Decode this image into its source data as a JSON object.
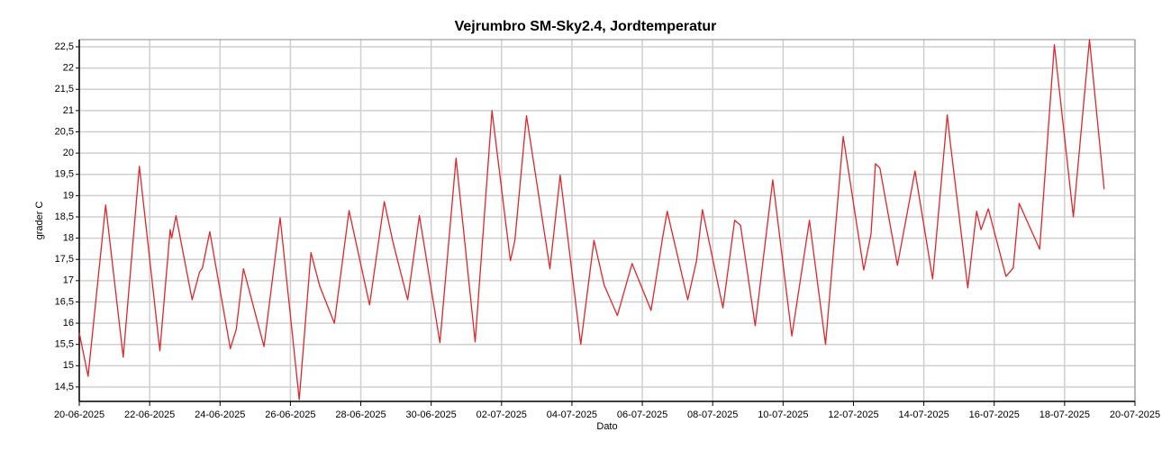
{
  "chart_data": {
    "type": "line",
    "title": "Vejrumbro SM-Sky2.4, Jordtemperatur",
    "xlabel": "Dato",
    "ylabel": "grader C",
    "grid": true,
    "xlim": [
      "2025-06-20",
      "2025-07-20"
    ],
    "xticks": [
      {
        "value": "2025-06-20",
        "label": "20-06-2025"
      },
      {
        "value": "2025-06-22",
        "label": "22-06-2025"
      },
      {
        "value": "2025-06-24",
        "label": "24-06-2025"
      },
      {
        "value": "2025-06-26",
        "label": "26-06-2025"
      },
      {
        "value": "2025-06-28",
        "label": "28-06-2025"
      },
      {
        "value": "2025-06-30",
        "label": "30-06-2025"
      },
      {
        "value": "2025-07-02",
        "label": "02-07-2025"
      },
      {
        "value": "2025-07-04",
        "label": "04-07-2025"
      },
      {
        "value": "2025-07-06",
        "label": "06-07-2025"
      },
      {
        "value": "2025-07-08",
        "label": "08-07-2025"
      },
      {
        "value": "2025-07-10",
        "label": "10-07-2025"
      },
      {
        "value": "2025-07-12",
        "label": "12-07-2025"
      },
      {
        "value": "2025-07-14",
        "label": "14-07-2025"
      },
      {
        "value": "2025-07-16",
        "label": "16-07-2025"
      },
      {
        "value": "2025-07-18",
        "label": "18-07-2025"
      },
      {
        "value": "2025-07-20",
        "label": "20-07-2025"
      }
    ],
    "ylim": [
      14.16,
      22.67
    ],
    "yticks": [
      {
        "value": 14.5,
        "label": "14,5"
      },
      15,
      {
        "value": 15.5,
        "label": "15,5"
      },
      16,
      {
        "value": 16.5,
        "label": "16,5"
      },
      17,
      {
        "value": 17.5,
        "label": "17,5"
      },
      18,
      {
        "value": 18.5,
        "label": "18,5"
      },
      19,
      {
        "value": 19.5,
        "label": "19,5"
      },
      20,
      {
        "value": 20.5,
        "label": "20,5"
      },
      21,
      {
        "value": 21.5,
        "label": "21,5"
      },
      22,
      {
        "value": 22.5,
        "label": "22,5"
      }
    ],
    "x": [
      "2025-06-20T00:00",
      "2025-06-20T06:00",
      "2025-06-20T18:00",
      "2025-06-21T06:00",
      "2025-06-21T17:00",
      "2025-06-22T07:00",
      "2025-06-22T14:00",
      "2025-06-22T15:00",
      "2025-06-22T18:00",
      "2025-06-23T05:00",
      "2025-06-23T10:00",
      "2025-06-23T12:00",
      "2025-06-23T17:00",
      "2025-06-24T07:00",
      "2025-06-24T11:00",
      "2025-06-24T16:00",
      "2025-06-25T06:00",
      "2025-06-25T17:00",
      "2025-06-26T06:00",
      "2025-06-26T14:00",
      "2025-06-26T20:00",
      "2025-06-27T06:00",
      "2025-06-27T16:00",
      "2025-06-28T06:00",
      "2025-06-28T16:00",
      "2025-06-28T22:00",
      "2025-06-29T08:00",
      "2025-06-29T16:00",
      "2025-06-30T06:00",
      "2025-06-30T17:00",
      "2025-07-01T06:00",
      "2025-07-01T17:30",
      "2025-07-02T06:00",
      "2025-07-02T09:00",
      "2025-07-02T17:00",
      "2025-07-03T09:00",
      "2025-07-03T16:00",
      "2025-07-04T06:00",
      "2025-07-04T15:00",
      "2025-07-04T22:00",
      "2025-07-05T07:00",
      "2025-07-05T17:00",
      "2025-07-06T06:00",
      "2025-07-06T14:00",
      "2025-07-06T17:00",
      "2025-07-07T07:00",
      "2025-07-07T13:00",
      "2025-07-07T17:00",
      "2025-07-08T07:00",
      "2025-07-08T15:00",
      "2025-07-08T19:00",
      "2025-07-09T05:00",
      "2025-07-09T17:00",
      "2025-07-10T06:00",
      "2025-07-10T18:00",
      "2025-07-11T05:00",
      "2025-07-11T17:00",
      "2025-07-12T07:00",
      "2025-07-12T12:00",
      "2025-07-12T15:00",
      "2025-07-12T18:00",
      "2025-07-13T06:00",
      "2025-07-13T18:00",
      "2025-07-14T06:00",
      "2025-07-14T16:00",
      "2025-07-14T18:00",
      "2025-07-15T06:00",
      "2025-07-15T12:00",
      "2025-07-15T15:00",
      "2025-07-15T20:00",
      "2025-07-16T08:00",
      "2025-07-16T13:00",
      "2025-07-16T17:00",
      "2025-07-17T07:00",
      "2025-07-17T17:00",
      "2025-07-18T06:00",
      "2025-07-18T17:00",
      "2025-07-19T03:00"
    ],
    "series": [
      {
        "name": "Jordtemperatur",
        "color": "#e0262b",
        "values": [
          15.77,
          14.75,
          18.78,
          15.2,
          19.69,
          15.35,
          18.2,
          18.0,
          18.53,
          16.55,
          17.2,
          17.3,
          18.15,
          15.4,
          15.85,
          17.28,
          15.45,
          18.48,
          14.2,
          17.66,
          16.87,
          16.0,
          18.65,
          16.43,
          18.86,
          17.9,
          16.55,
          18.53,
          15.54,
          19.88,
          15.56,
          21.0,
          17.47,
          17.93,
          20.88,
          17.28,
          19.48,
          15.5,
          17.95,
          16.9,
          16.18,
          17.4,
          16.3,
          18.05,
          18.63,
          16.55,
          17.47,
          18.67,
          16.36,
          18.42,
          18.3,
          15.94,
          19.37,
          15.7,
          18.42,
          15.5,
          20.39,
          17.25,
          18.1,
          19.75,
          19.65,
          17.36,
          19.58,
          17.04,
          20.9,
          20.26,
          16.83,
          18.63,
          18.2,
          18.69,
          17.1,
          17.3,
          18.82,
          17.74,
          22.55,
          18.5,
          22.67,
          19.15
        ]
      }
    ]
  }
}
